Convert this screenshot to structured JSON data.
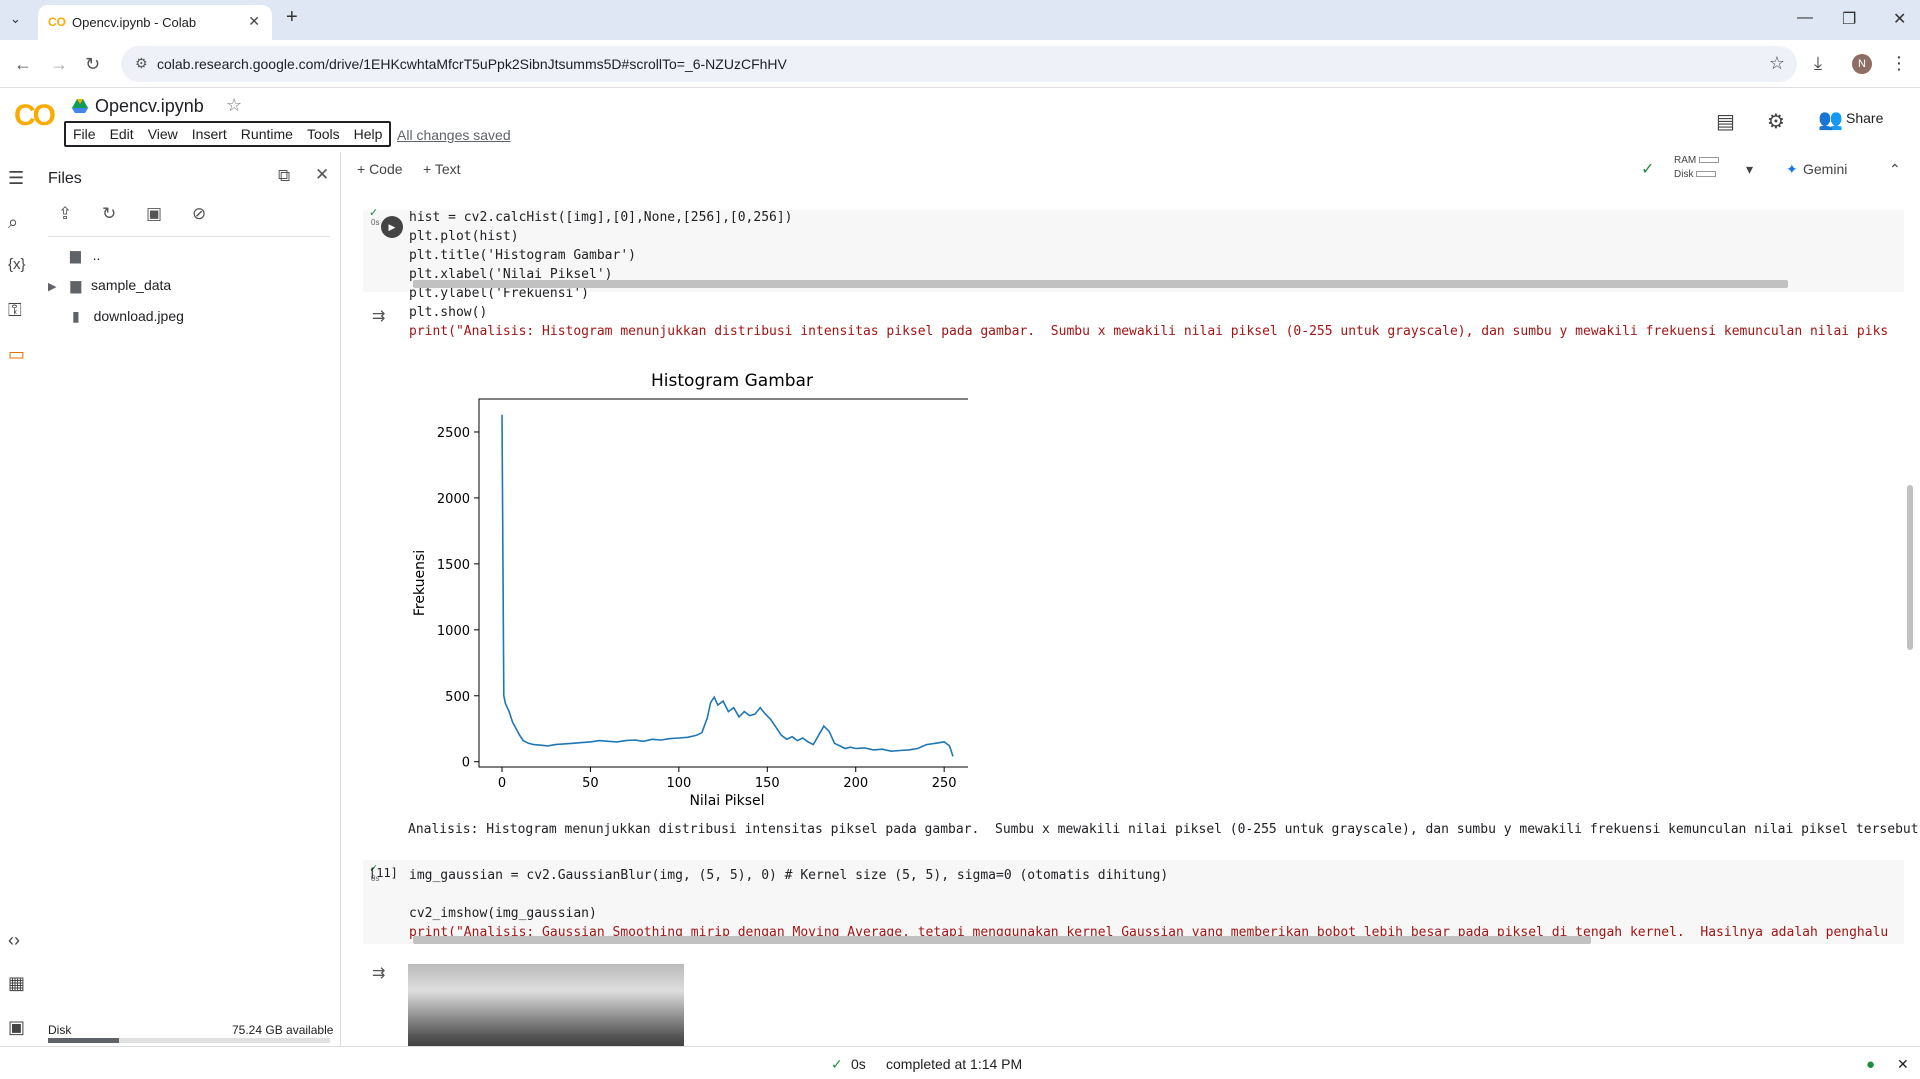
{
  "browser": {
    "tab_title": "Opencv.ipynb - Colab",
    "url": "colab.research.google.com/drive/1EHKcwhtaMfcrT5uPpk2SibnJtsumms5D#scrollTo=_6-NZUzCFhHV",
    "avatar_letter": "N"
  },
  "header": {
    "logo": "CO",
    "notebook_title": "Opencv.ipynb",
    "menu": [
      "File",
      "Edit",
      "View",
      "Insert",
      "Runtime",
      "Tools",
      "Help"
    ],
    "save_status": "All changes saved",
    "share_label": "Share"
  },
  "toolbar": {
    "code_label": "+ Code",
    "text_label": "+ Text",
    "ram_label": "RAM",
    "disk_label": "Disk",
    "gemini_label": "Gemini"
  },
  "files": {
    "title": "Files",
    "items": [
      "..",
      "sample_data",
      "download.jpeg"
    ],
    "disk_label": "Disk",
    "disk_free": "75.24 GB available",
    "disk_used_fraction": 0.25
  },
  "cells": {
    "cell1": {
      "exec_time": "0s",
      "code_lines": [
        "hist = cv2.calcHist([img],[0],None,[256],[0,256])",
        "plt.plot(hist)",
        "plt.title('Histogram Gambar')",
        "plt.xlabel('Nilai Piksel')",
        "plt.ylabel('Frekuensi')",
        "plt.show()",
        "print(\"Analisis: Histogram menunjukkan distribusi intensitas piksel pada gambar.  Sumbu x mewakili nilai piksel (0-255 untuk grayscale), dan sumbu y mewakili frekuensi kemunculan nilai piksel t"
      ],
      "output_text": "Analisis: Histogram menunjukkan distribusi intensitas piksel pada gambar.  Sumbu x mewakili nilai piksel (0-255 untuk grayscale), dan sumbu y mewakili frekuensi kemunculan nilai piksel tersebut."
    },
    "cell2": {
      "exec_count": "[11]",
      "exec_time": "0s",
      "code_lines": [
        "img_gaussian = cv2.GaussianBlur(img, (5, 5), 0) # Kernel size (5, 5), sigma=0 (otomatis dihitung)",
        "",
        "cv2_imshow(img_gaussian)",
        "print(\"Analisis: Gaussian Smoothing mirip dengan Moving Average, tetapi menggunakan kernel Gaussian yang memberikan bobot lebih besar pada piksel di tengah kernel.  Hasilnya adalah penghalusan :"
      ]
    }
  },
  "status": {
    "time": "0s",
    "completed": "completed at 1:14 PM"
  },
  "chart_data": {
    "type": "line",
    "title": "Histogram Gambar",
    "xlabel": "Nilai Piksel",
    "ylabel": "Frekuensi",
    "xlim": [
      -13,
      268
    ],
    "ylim": [
      -40,
      2750
    ],
    "xticks": [
      0,
      50,
      100,
      150,
      200,
      250
    ],
    "yticks": [
      0,
      500,
      1000,
      1500,
      2000,
      2500
    ],
    "color": "#1f77b4",
    "x": [
      0,
      1,
      2,
      4,
      6,
      8,
      10,
      12,
      15,
      18,
      22,
      26,
      30,
      35,
      40,
      45,
      50,
      55,
      60,
      65,
      70,
      75,
      80,
      85,
      90,
      95,
      100,
      105,
      110,
      113,
      116,
      118,
      120,
      122,
      125,
      128,
      131,
      134,
      137,
      140,
      143,
      146,
      149,
      152,
      155,
      158,
      161,
      164,
      167,
      170,
      173,
      176,
      179,
      182,
      185,
      188,
      191,
      194,
      197,
      200,
      205,
      210,
      215,
      220,
      225,
      230,
      235,
      240,
      245,
      250,
      253,
      255
    ],
    "y": [
      2630,
      500,
      440,
      380,
      300,
      250,
      200,
      160,
      140,
      130,
      125,
      120,
      130,
      135,
      140,
      145,
      150,
      160,
      155,
      150,
      160,
      165,
      155,
      170,
      165,
      175,
      180,
      185,
      200,
      220,
      330,
      450,
      490,
      430,
      460,
      380,
      410,
      340,
      380,
      350,
      360,
      410,
      360,
      320,
      260,
      200,
      170,
      190,
      160,
      180,
      150,
      130,
      200,
      270,
      230,
      140,
      120,
      100,
      110,
      100,
      105,
      90,
      95,
      80,
      85,
      90,
      100,
      130,
      140,
      150,
      120,
      40
    ]
  }
}
